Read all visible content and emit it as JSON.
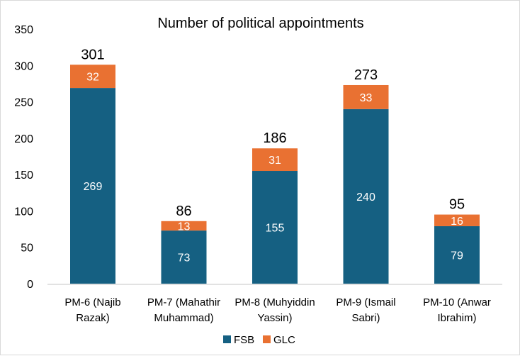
{
  "chart_data": {
    "type": "bar",
    "stacked": true,
    "title": "Number of political appointments",
    "xlabel": "",
    "ylabel": "",
    "ylim": [
      0,
      350
    ],
    "yticks": [
      0,
      50,
      100,
      150,
      200,
      250,
      300,
      350
    ],
    "grid": false,
    "legend_position": "bottom",
    "categories": [
      [
        "PM-6 (Najib",
        "Razak)"
      ],
      [
        "PM-7 (Mahathir",
        "Muhammad)"
      ],
      [
        "PM-8 (Muhyiddin",
        "Yassin)"
      ],
      [
        "PM-9 (Ismail",
        "Sabri)"
      ],
      [
        "PM-10 (Anwar",
        "Ibrahim)"
      ]
    ],
    "series": [
      {
        "name": "FSB",
        "color": "#156082",
        "values": [
          269,
          73,
          155,
          240,
          79
        ]
      },
      {
        "name": "GLC",
        "color": "#E97132",
        "values": [
          32,
          13,
          31,
          33,
          16
        ]
      }
    ],
    "totals": [
      301,
      86,
      186,
      273,
      95
    ]
  }
}
